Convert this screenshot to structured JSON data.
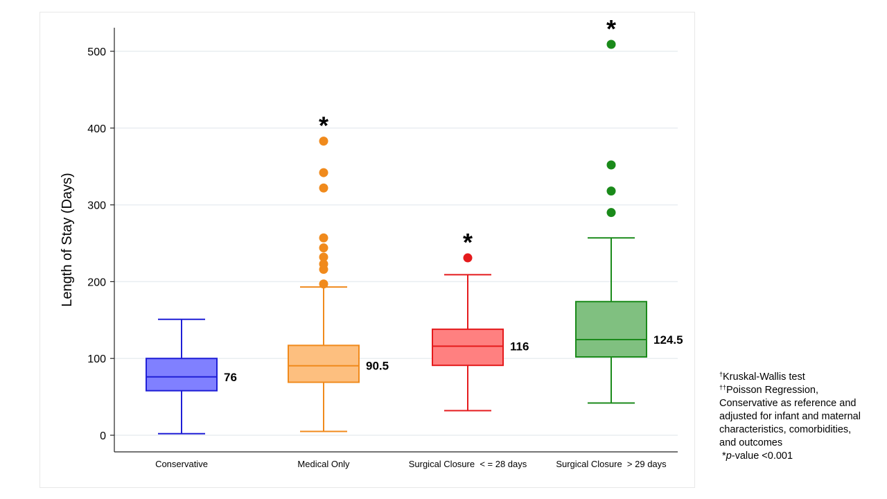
{
  "chart_data": {
    "type": "box",
    "ylabel": "Length of Stay (Days)",
    "xlabel": "",
    "ylim": [
      -20,
      530
    ],
    "yticks": [
      0,
      100,
      200,
      300,
      400,
      500
    ],
    "grid": true,
    "categories": [
      "Conservative",
      "Medical Only",
      "Surgical Closure  < = 28 days",
      "Surgical Closure  > 29 days"
    ],
    "boxes": [
      {
        "category": "Conservative",
        "color": "#1f1fd6",
        "fill": "#8080ff",
        "whisker_low": 2,
        "q1": 58,
        "median": 76,
        "q3": 100,
        "whisker_high": 151,
        "median_label": "76",
        "outliers": [],
        "significant": false
      },
      {
        "category": "Medical Only",
        "color": "#f08a1c",
        "fill": "#fdbf7f",
        "whisker_low": 5,
        "q1": 69,
        "median": 90.5,
        "q3": 117,
        "whisker_high": 193,
        "median_label": "90.5",
        "outliers": [
          197,
          216,
          223,
          232,
          244,
          257,
          322,
          342,
          383
        ],
        "significant": true
      },
      {
        "category": "Surgical Closure  < = 28 days",
        "color": "#e41a1c",
        "fill": "#ff8080",
        "whisker_low": 32,
        "q1": 91,
        "median": 116,
        "q3": 138,
        "whisker_high": 209,
        "median_label": "116",
        "outliers": [
          231
        ],
        "significant": true
      },
      {
        "category": "Surgical Closure  > 29 days",
        "color": "#1a8a1a",
        "fill": "#80c080",
        "whisker_low": 42,
        "q1": 102,
        "median": 124.5,
        "q3": 174,
        "whisker_high": 257,
        "median_label": "124.5",
        "outliers": [
          290,
          318,
          352,
          509
        ],
        "significant": true
      }
    ],
    "significance_marker": "*"
  },
  "footnote": {
    "kw_symbol": "†",
    "kw_text": "Kruskal-Wallis test",
    "pr_symbol": "††",
    "pr_text": "Poisson Regression,",
    "line3": "Conservative as reference and",
    "line4": "adjusted for infant and maternal",
    "line5": "characteristics, comorbidities,",
    "line6": "and outcomes",
    "pvalue_star": "*",
    "pvalue_p": "p",
    "pvalue_text": "-value <0.001"
  }
}
